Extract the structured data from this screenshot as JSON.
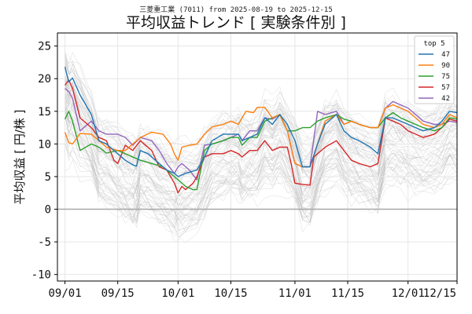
{
  "chart_data": {
    "type": "line",
    "subtitle": "三菱重工業 (7011) from 2025-08-19 to 2025-12-15",
    "title": "平均収益トレンド [ 実験条件別 ]",
    "xlabel": "",
    "ylabel": "平均収益 [ 円/株 ]",
    "ylim": [
      -11,
      27
    ],
    "yticks": [
      -10,
      -5,
      0,
      5,
      10,
      15,
      20,
      25
    ],
    "x_day_range": [
      -2,
      104
    ],
    "xticks": [
      {
        "day": 0,
        "label": "09/01"
      },
      {
        "day": 14,
        "label": "09/15"
      },
      {
        "day": 30,
        "label": "10/01"
      },
      {
        "day": 44,
        "label": "10/15"
      },
      {
        "day": 61,
        "label": "11/01"
      },
      {
        "day": 75,
        "label": "11/15"
      },
      {
        "day": 91,
        "label": "12/01"
      },
      {
        "day": 105,
        "label": "12/15"
      }
    ],
    "grid": true,
    "legend": {
      "title": "top 5",
      "position": "top-right"
    },
    "series": [
      {
        "name": "47",
        "color": "#1f77b4",
        "points": [
          [
            0,
            21.8
          ],
          [
            1,
            19.5
          ],
          [
            2,
            20.1
          ],
          [
            4,
            17.5
          ],
          [
            7,
            14.5
          ],
          [
            9,
            10.5
          ],
          [
            11,
            10
          ],
          [
            14,
            8.5
          ],
          [
            16,
            7.5
          ],
          [
            18,
            6.8
          ],
          [
            19,
            6.6
          ],
          [
            20,
            9
          ],
          [
            22,
            8.5
          ],
          [
            25,
            7
          ],
          [
            27,
            6
          ],
          [
            29,
            5.5
          ],
          [
            30,
            5
          ],
          [
            32,
            5.5
          ],
          [
            35,
            6
          ],
          [
            37,
            8
          ],
          [
            39,
            10.5
          ],
          [
            42,
            11.5
          ],
          [
            44,
            11.5
          ],
          [
            46,
            11.5
          ],
          [
            47,
            10.5
          ],
          [
            49,
            11
          ],
          [
            51,
            11.5
          ],
          [
            53,
            14
          ],
          [
            55,
            13
          ],
          [
            57,
            14.5
          ],
          [
            59,
            13
          ],
          [
            61,
            10.5
          ],
          [
            63,
            6.5
          ],
          [
            65,
            6.5
          ],
          [
            67,
            10
          ],
          [
            69,
            13
          ],
          [
            72,
            14.5
          ],
          [
            74,
            12
          ],
          [
            76,
            11
          ],
          [
            78,
            10.5
          ],
          [
            81,
            9.5
          ],
          [
            83,
            8.5
          ],
          [
            85,
            14
          ],
          [
            87,
            14
          ],
          [
            89,
            13.5
          ],
          [
            91,
            13
          ],
          [
            93,
            12.5
          ],
          [
            95,
            12
          ],
          [
            98,
            12.5
          ],
          [
            100,
            13.5
          ],
          [
            102,
            15
          ],
          [
            104,
            14.8
          ]
        ]
      },
      {
        "name": "90",
        "color": "#ff7f0e",
        "points": [
          [
            0,
            11.8
          ],
          [
            1,
            10.2
          ],
          [
            2,
            10
          ],
          [
            4,
            11.6
          ],
          [
            7,
            11.5
          ],
          [
            9,
            10.5
          ],
          [
            11,
            9.5
          ],
          [
            14,
            9
          ],
          [
            16,
            9
          ],
          [
            18,
            10
          ],
          [
            20,
            11
          ],
          [
            23,
            11.8
          ],
          [
            26,
            11.5
          ],
          [
            28,
            10
          ],
          [
            29,
            8.5
          ],
          [
            30,
            7.5
          ],
          [
            31,
            9.5
          ],
          [
            33,
            9.8
          ],
          [
            35,
            10
          ],
          [
            37,
            11.5
          ],
          [
            39,
            12.6
          ],
          [
            42,
            13
          ],
          [
            44,
            13.5
          ],
          [
            46,
            13
          ],
          [
            48,
            15
          ],
          [
            50,
            14.8
          ],
          [
            51,
            15.6
          ],
          [
            53,
            15.6
          ],
          [
            55,
            14
          ],
          [
            57,
            14.5
          ],
          [
            59,
            12
          ],
          [
            61,
            7
          ],
          [
            63,
            6.5
          ],
          [
            65,
            6.5
          ],
          [
            67,
            10
          ],
          [
            69,
            13.5
          ],
          [
            72,
            14.5
          ],
          [
            74,
            13
          ],
          [
            76,
            13.5
          ],
          [
            78,
            13
          ],
          [
            81,
            12.5
          ],
          [
            83,
            12.5
          ],
          [
            85,
            15.5
          ],
          [
            87,
            16
          ],
          [
            89,
            15.5
          ],
          [
            91,
            15
          ],
          [
            93,
            14
          ],
          [
            95,
            13
          ],
          [
            98,
            12.5
          ],
          [
            100,
            13
          ],
          [
            102,
            14.5
          ],
          [
            104,
            14
          ]
        ]
      },
      {
        "name": "75",
        "color": "#2ca02c",
        "points": [
          [
            0,
            13.8
          ],
          [
            1,
            15
          ],
          [
            2,
            13.5
          ],
          [
            4,
            9
          ],
          [
            7,
            10
          ],
          [
            9,
            9.5
          ],
          [
            11,
            8.6
          ],
          [
            14,
            9
          ],
          [
            16,
            8.5
          ],
          [
            18,
            8
          ],
          [
            20,
            7.5
          ],
          [
            23,
            7
          ],
          [
            26,
            6.5
          ],
          [
            28,
            5.5
          ],
          [
            29,
            5
          ],
          [
            30,
            4.5
          ],
          [
            32,
            3.5
          ],
          [
            34,
            3
          ],
          [
            35,
            3
          ],
          [
            37,
            9
          ],
          [
            39,
            10
          ],
          [
            42,
            10.5
          ],
          [
            44,
            11
          ],
          [
            46,
            11
          ],
          [
            47,
            9.8
          ],
          [
            49,
            11
          ],
          [
            51,
            11
          ],
          [
            53,
            13.5
          ],
          [
            55,
            14
          ],
          [
            57,
            14.5
          ],
          [
            59,
            12
          ],
          [
            61,
            12
          ],
          [
            63,
            12.5
          ],
          [
            65,
            12.5
          ],
          [
            67,
            13.5
          ],
          [
            69,
            14
          ],
          [
            72,
            14.5
          ],
          [
            74,
            13.8
          ],
          [
            76,
            13.5
          ],
          [
            78,
            13
          ],
          [
            81,
            12.5
          ],
          [
            83,
            12.5
          ],
          [
            85,
            14
          ],
          [
            87,
            14.8
          ],
          [
            89,
            14
          ],
          [
            91,
            13.5
          ],
          [
            93,
            13
          ],
          [
            95,
            12.5
          ],
          [
            98,
            12
          ],
          [
            100,
            12.5
          ],
          [
            102,
            14
          ],
          [
            104,
            13.8
          ]
        ]
      },
      {
        "name": "57",
        "color": "#d62728",
        "points": [
          [
            0,
            19
          ],
          [
            1,
            19.8
          ],
          [
            2,
            18.5
          ],
          [
            4,
            14
          ],
          [
            7,
            12.5
          ],
          [
            9,
            11
          ],
          [
            11,
            10.5
          ],
          [
            13,
            7.5
          ],
          [
            14,
            7
          ],
          [
            16,
            9.8
          ],
          [
            18,
            9
          ],
          [
            20,
            10.5
          ],
          [
            23,
            9
          ],
          [
            25,
            6.5
          ],
          [
            27,
            6
          ],
          [
            29,
            4
          ],
          [
            30,
            2.5
          ],
          [
            31,
            3.5
          ],
          [
            32,
            3
          ],
          [
            34,
            4
          ],
          [
            35,
            5
          ],
          [
            37,
            8
          ],
          [
            39,
            8.5
          ],
          [
            42,
            8.5
          ],
          [
            44,
            9
          ],
          [
            46,
            8.5
          ],
          [
            47,
            8
          ],
          [
            49,
            9
          ],
          [
            51,
            9
          ],
          [
            53,
            10.5
          ],
          [
            55,
            9
          ],
          [
            57,
            9.5
          ],
          [
            59,
            9.5
          ],
          [
            60,
            7
          ],
          [
            61,
            4
          ],
          [
            63,
            3.8
          ],
          [
            65,
            3.7
          ],
          [
            66,
            8
          ],
          [
            67,
            8.5
          ],
          [
            69,
            9.5
          ],
          [
            72,
            10.5
          ],
          [
            74,
            9
          ],
          [
            76,
            7.5
          ],
          [
            78,
            7
          ],
          [
            81,
            6.5
          ],
          [
            83,
            7
          ],
          [
            85,
            14
          ],
          [
            87,
            13.5
          ],
          [
            89,
            13
          ],
          [
            91,
            12
          ],
          [
            93,
            11.5
          ],
          [
            95,
            11
          ],
          [
            98,
            11.5
          ],
          [
            100,
            12.5
          ],
          [
            102,
            13.8
          ],
          [
            104,
            13.5
          ]
        ]
      },
      {
        "name": "42",
        "color": "#9467bd",
        "points": [
          [
            0,
            18.5
          ],
          [
            1,
            18
          ],
          [
            2,
            17
          ],
          [
            4,
            12
          ],
          [
            7,
            13.5
          ],
          [
            9,
            12
          ],
          [
            11,
            11.5
          ],
          [
            14,
            11.5
          ],
          [
            16,
            11
          ],
          [
            18,
            9.8
          ],
          [
            20,
            11
          ],
          [
            23,
            10.5
          ],
          [
            25,
            9
          ],
          [
            27,
            7
          ],
          [
            29,
            5.5
          ],
          [
            30,
            6.5
          ],
          [
            31,
            7
          ],
          [
            33,
            6
          ],
          [
            35,
            4.5
          ],
          [
            37,
            9.8
          ],
          [
            39,
            10
          ],
          [
            42,
            10.5
          ],
          [
            44,
            11
          ],
          [
            46,
            11.5
          ],
          [
            47,
            10.5
          ],
          [
            49,
            12
          ],
          [
            51,
            12
          ],
          [
            53,
            14
          ],
          [
            55,
            13.8
          ],
          [
            57,
            14.5
          ],
          [
            59,
            12
          ],
          [
            61,
            7
          ],
          [
            63,
            6.5
          ],
          [
            65,
            6.5
          ],
          [
            67,
            15
          ],
          [
            69,
            14.5
          ],
          [
            72,
            15
          ],
          [
            74,
            13
          ],
          [
            76,
            13.5
          ],
          [
            78,
            13
          ],
          [
            81,
            12.5
          ],
          [
            83,
            12.5
          ],
          [
            85,
            15.5
          ],
          [
            87,
            16.5
          ],
          [
            89,
            16
          ],
          [
            91,
            15.5
          ],
          [
            93,
            14.5
          ],
          [
            95,
            13.5
          ],
          [
            98,
            13
          ],
          [
            100,
            13
          ],
          [
            102,
            13.5
          ],
          [
            104,
            13.3
          ]
        ]
      }
    ]
  }
}
